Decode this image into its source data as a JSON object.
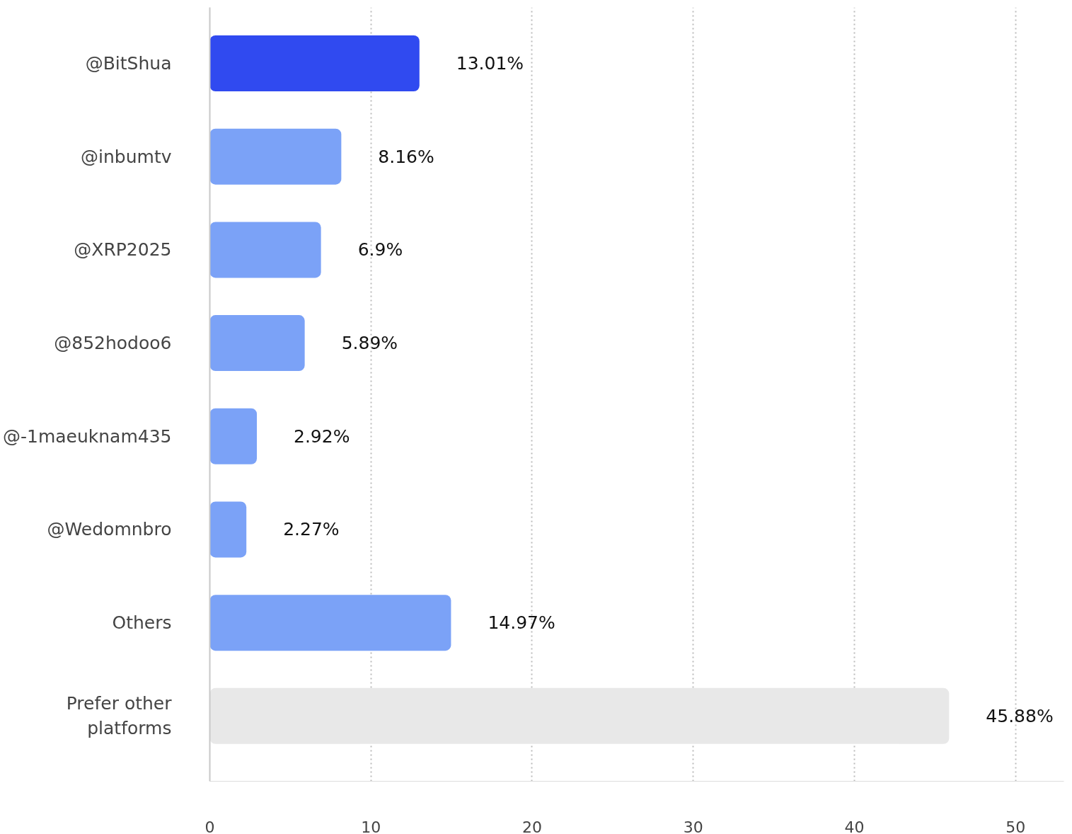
{
  "chart_data": {
    "type": "bar",
    "orientation": "horizontal",
    "categories": [
      "@BitShua",
      "@inbumtv",
      "@XRP2025",
      "@852hodoo6",
      "@-1maeuknam435",
      "@Wedomnbro",
      "Others",
      "Prefer other\nplatforms"
    ],
    "values": [
      13.01,
      8.16,
      6.9,
      5.89,
      2.92,
      2.27,
      14.97,
      45.88
    ],
    "value_labels": [
      "13.01%",
      "8.16%",
      "6.9%",
      "5.89%",
      "2.92%",
      "2.27%",
      "14.97%",
      "45.88%"
    ],
    "colors": [
      "#304af0",
      "#7ba2f7",
      "#7ba2f7",
      "#7ba2f7",
      "#7ba2f7",
      "#7ba2f7",
      "#7ba2f7",
      "#e8e8e8"
    ],
    "xlim": [
      0,
      53
    ],
    "xticks": [
      0,
      10,
      20,
      30,
      40,
      50
    ],
    "grid": "x"
  }
}
